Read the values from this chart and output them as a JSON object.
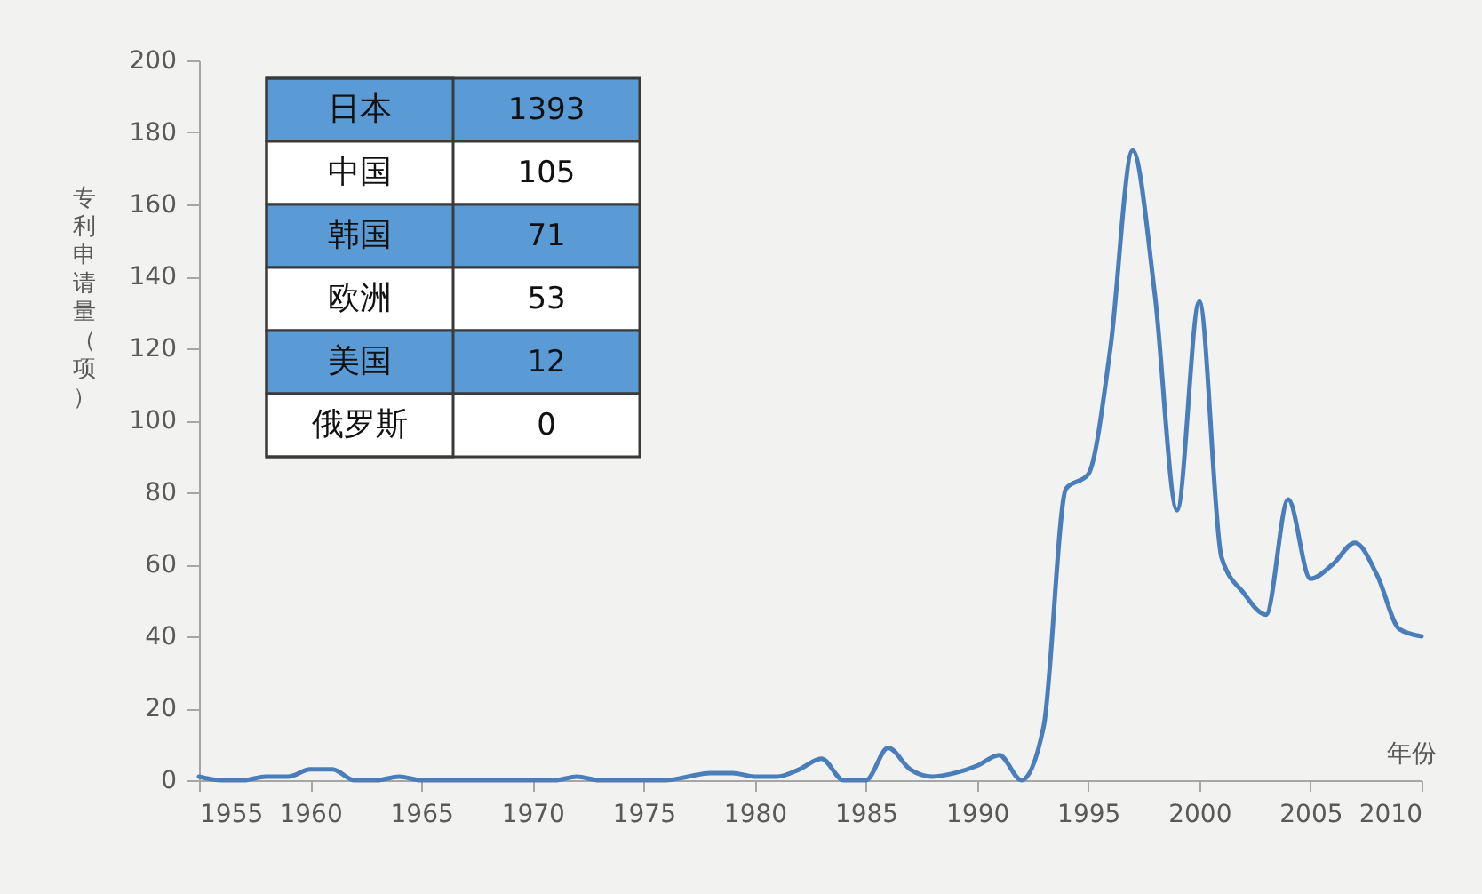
{
  "chart_data": [
    {
      "type": "line",
      "xlabel": "年份",
      "ylabel": "专利申请量（项）",
      "x": [
        1955,
        1956,
        1957,
        1958,
        1959,
        1960,
        1961,
        1962,
        1963,
        1964,
        1965,
        1966,
        1967,
        1968,
        1969,
        1970,
        1971,
        1972,
        1973,
        1974,
        1975,
        1976,
        1977,
        1978,
        1979,
        1980,
        1981,
        1982,
        1983,
        1984,
        1985,
        1986,
        1987,
        1988,
        1989,
        1990,
        1991,
        1992,
        1993,
        1994,
        1995,
        1996,
        1997,
        1998,
        1999,
        2000,
        2001,
        2002,
        2003,
        2004,
        2005,
        2006,
        2007,
        2008,
        2009,
        2010
      ],
      "series": [
        {
          "color": "#4a7ebb",
          "values": [
            1,
            0,
            0,
            1,
            1,
            3,
            3,
            0,
            0,
            1,
            0,
            0,
            0,
            0,
            0,
            0,
            0,
            1,
            0,
            0,
            0,
            0,
            1,
            2,
            2,
            1,
            1,
            3,
            6,
            0,
            0,
            9,
            3,
            1,
            2,
            4,
            7,
            0,
            15,
            81,
            85,
            120,
            175,
            135,
            75,
            133,
            62,
            52,
            46,
            78,
            56,
            60,
            66,
            57,
            42,
            40
          ]
        }
      ],
      "xlim": [
        1955,
        2010
      ],
      "ylim": [
        0,
        200
      ],
      "xticks": [
        1955,
        1960,
        1965,
        1970,
        1975,
        1980,
        1985,
        1990,
        1995,
        2000,
        2005,
        2010
      ],
      "yticks": [
        0,
        20,
        40,
        60,
        80,
        100,
        120,
        140,
        160,
        180,
        200
      ]
    },
    {
      "type": "other",
      "categories": [
        "日本",
        "中国",
        "韩国",
        "欧洲",
        "美国",
        "俄罗斯"
      ],
      "values": [
        1393,
        105,
        71,
        53,
        12,
        0
      ],
      "colors": [
        "#5b9bd5",
        "#ffffff",
        "#5b9bd5",
        "#ffffff",
        "#5b9bd5",
        "#ffffff"
      ],
      "data_labels": true
    }
  ]
}
